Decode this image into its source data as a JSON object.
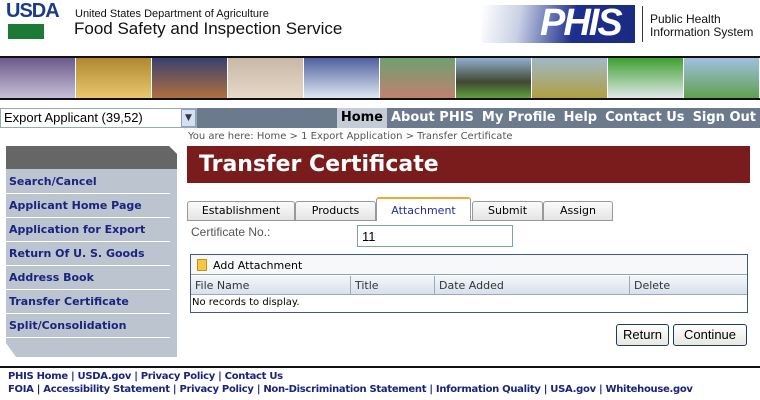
{
  "header": {
    "logo": "USDA",
    "department": "United States Department of Agriculture",
    "agency": "Food Safety and Inspection Service",
    "system_logo": "PHIS",
    "system_name_line1": "Public Health",
    "system_name_line2": "Information System"
  },
  "role_select": {
    "value": "Export Applicant (39,52)"
  },
  "nav": [
    "Home",
    "About PHIS",
    "My Profile",
    "Help",
    "Contact Us",
    "Sign Out"
  ],
  "breadcrumb": "You are here: Home > 1 Export Application > Transfer Certificate",
  "sidebar": [
    "Search/Cancel",
    "Applicant Home Page",
    "Application for Export",
    "Return Of U. S. Goods",
    "Address Book",
    "Transfer Certificate",
    "Split/Consolidation"
  ],
  "page_title": "Transfer Certificate",
  "tabs": [
    "Establishment",
    "Products",
    "Attachment",
    "Submit",
    "Assign"
  ],
  "active_tab": "Attachment",
  "certificate": {
    "label": "Certificate No.:",
    "value": "11"
  },
  "grid": {
    "command": "Add Attachment",
    "columns": [
      "File Name",
      "Title",
      "Date Added",
      "Delete"
    ],
    "empty": "No records to display."
  },
  "buttons": {
    "return": "Return",
    "continue": "Continue"
  },
  "footer": {
    "line1": "PHIS Home | USDA.gov | Privacy Policy | Contact Us",
    "line2": "FOIA | Accessibility Statement | Privacy Policy | Non-Discrimination Statement | Information Quality | USA.gov | Whitehouse.gov"
  },
  "colors": {
    "title_bar": "#7b1c1c",
    "nav_bar": "#6c7a8e",
    "sidebar": "#bcc4d0",
    "link": "#1a237e"
  }
}
